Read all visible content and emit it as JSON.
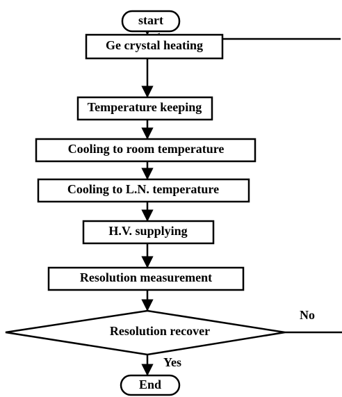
{
  "nodes": [
    {
      "id": "start",
      "label": "start"
    },
    {
      "id": "heat",
      "label": "Ge crystal heating"
    },
    {
      "id": "keep",
      "label": "Temperature keeping"
    },
    {
      "id": "room",
      "label": "Cooling to room temperature"
    },
    {
      "id": "ln",
      "label": "Cooling to L.N. temperature"
    },
    {
      "id": "hv",
      "label": "H.V. supplying"
    },
    {
      "id": "meas",
      "label": "Resolution measurement"
    },
    {
      "id": "recover",
      "label": "Resolution recover"
    },
    {
      "id": "end",
      "label": "End"
    }
  ],
  "edges": [
    {
      "label": "No"
    },
    {
      "label": "Yes"
    }
  ]
}
